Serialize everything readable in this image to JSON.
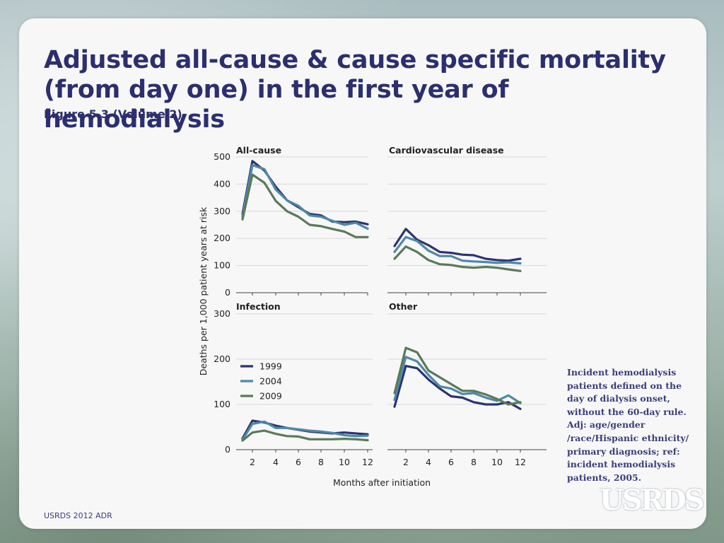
{
  "slide": {
    "title": "Adjusted all-cause & cause specific mortality (from day one) in the first year of hemodialysis",
    "subtitle": "Figure 5.3 (Volume 2)",
    "note": "Incident hemodialysis patients defined on the day of dialysis onset, without the 60-day rule. Adj: age/gender /race/Hispanic ethnicity/ primary diagnosis; ref: incident hemodialysis patients, 2005.",
    "footer": "USRDS 2012 ADR",
    "logo": "USRDS"
  },
  "colors": {
    "1999": "#2b3570",
    "2004": "#4f88a8",
    "2009": "#5b7a58",
    "title": "#2c2f6e",
    "grid": "#d8d8d8"
  },
  "chart_data": {
    "type": "line",
    "ylabel": "Deaths per 1,000 patient years at risk",
    "xlabel": "Months after initiation",
    "x": [
      1,
      2,
      3,
      4,
      5,
      6,
      7,
      8,
      9,
      10,
      11,
      12
    ],
    "x_ticks": [
      2,
      4,
      6,
      8,
      10,
      12
    ],
    "legend": [
      "1999",
      "2004",
      "2009"
    ],
    "legend_position": "left, inside Infection panel",
    "grid": true,
    "panels": [
      {
        "title": "All-cause",
        "ylim": [
          0,
          500
        ],
        "y_ticks": [
          0,
          100,
          200,
          300,
          400,
          500
        ],
        "series": [
          {
            "name": "1999",
            "values": [
              290,
              485,
              450,
              390,
              340,
              315,
              290,
              285,
              262,
              260,
              262,
              252
            ]
          },
          {
            "name": "2004",
            "values": [
              280,
              470,
              455,
              380,
              340,
              320,
              285,
              280,
              265,
              250,
              258,
              236
            ]
          },
          {
            "name": "2009",
            "values": [
              270,
              435,
              405,
              338,
              300,
              280,
              250,
              245,
              235,
              225,
              205,
              205
            ]
          }
        ]
      },
      {
        "title": "Cardiovascular disease",
        "ylim": [
          0,
          500
        ],
        "y_ticks": [
          0,
          100,
          200,
          300,
          400,
          500
        ],
        "series": [
          {
            "name": "1999",
            "values": [
              172,
              235,
              195,
              175,
              150,
              147,
              140,
              138,
              125,
              120,
              118,
              125
            ]
          },
          {
            "name": "2004",
            "values": [
              150,
              205,
              190,
              155,
              135,
              135,
              118,
              115,
              113,
              110,
              112,
              108
            ]
          },
          {
            "name": "2009",
            "values": [
              125,
              170,
              150,
              120,
              105,
              102,
              95,
              92,
              95,
              92,
              86,
              80
            ]
          }
        ]
      },
      {
        "title": "Infection",
        "ylim": [
          0,
          300
        ],
        "y_ticks": [
          0,
          100,
          200,
          300
        ],
        "series": [
          {
            "name": "1999",
            "values": [
              25,
              64,
              60,
              53,
              48,
              44,
              40,
              38,
              36,
              38,
              36,
              34
            ]
          },
          {
            "name": "2004",
            "values": [
              22,
              57,
              62,
              48,
              48,
              45,
              42,
              40,
              37,
              32,
              30,
              31
            ]
          },
          {
            "name": "2009",
            "values": [
              20,
              38,
              42,
              35,
              30,
              29,
              23,
              23,
              23,
              24,
              23,
              21
            ]
          }
        ]
      },
      {
        "title": "Other",
        "ylim": [
          0,
          300
        ],
        "y_ticks": [
          0,
          100,
          200,
          300
        ],
        "series": [
          {
            "name": "1999",
            "values": [
              95,
              185,
              180,
              155,
              135,
              118,
              115,
              105,
              100,
              100,
              105,
              90
            ]
          },
          {
            "name": "2004",
            "values": [
              110,
              205,
              195,
              165,
              140,
              135,
              123,
              125,
              115,
              108,
              120,
              103
            ]
          },
          {
            "name": "2009",
            "values": [
              125,
              225,
              215,
              175,
              160,
              145,
              130,
              130,
              122,
              112,
              100,
              105
            ]
          }
        ]
      }
    ]
  }
}
